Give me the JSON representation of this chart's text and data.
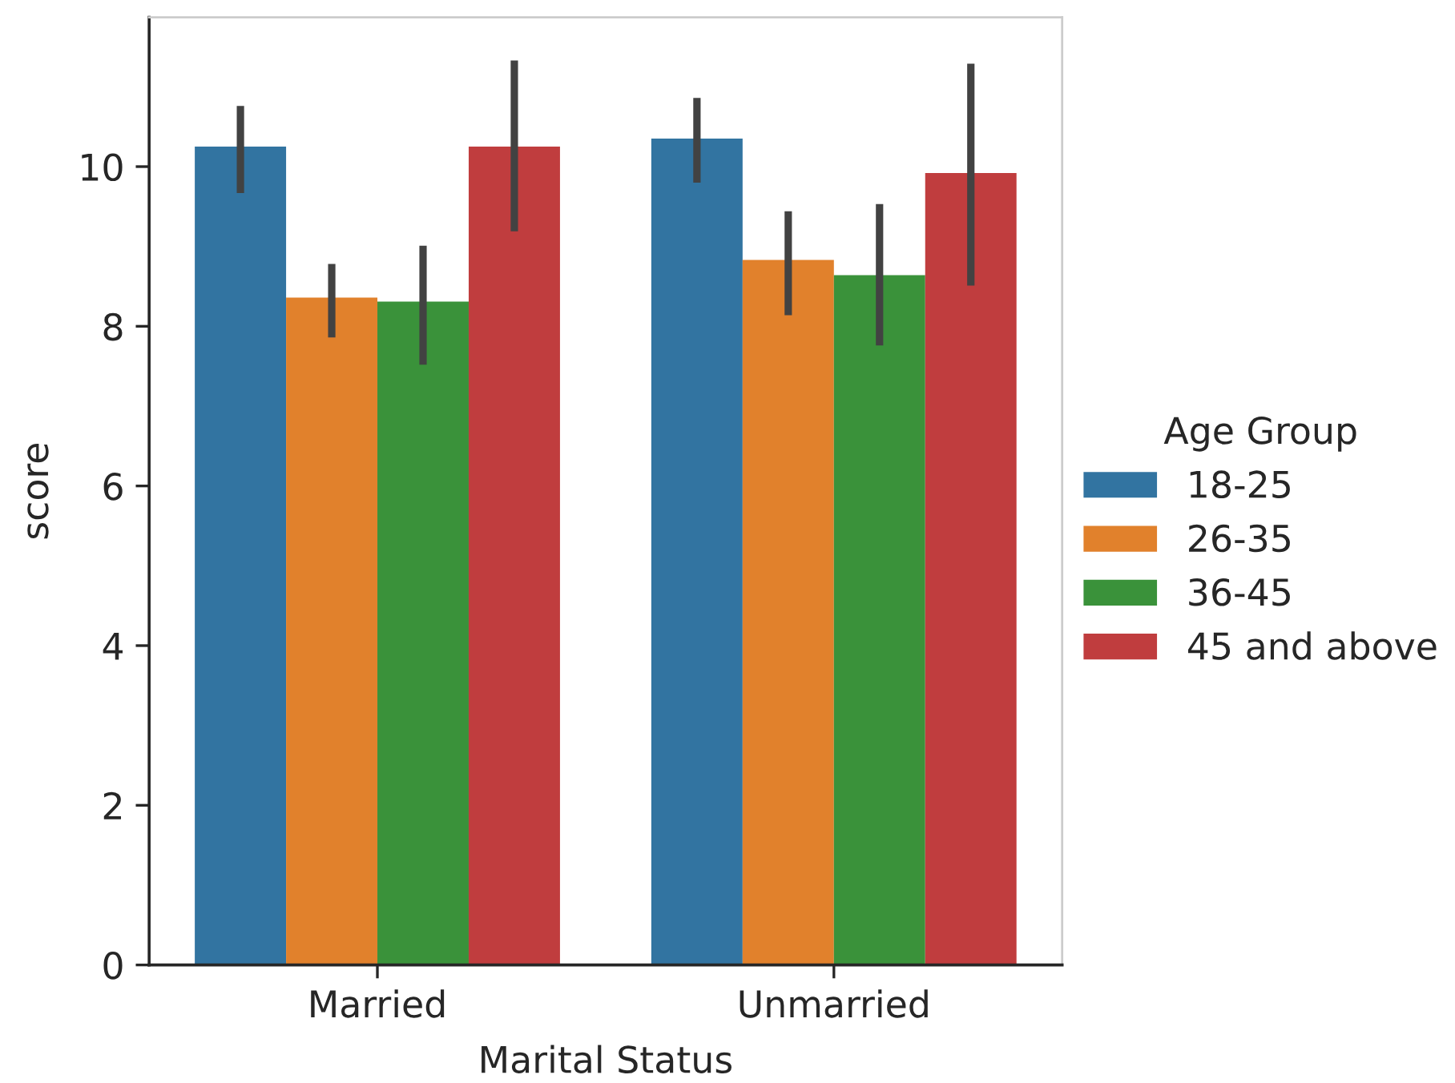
{
  "chart_data": {
    "type": "bar",
    "xlabel": "Marital Status",
    "ylabel": "score",
    "legend_title": "Age Group",
    "legend": "right",
    "categories": [
      "Married",
      "Unmarried"
    ],
    "series": [
      {
        "name": "18-25",
        "color": "#3274a1",
        "values": [
          10.25,
          10.35
        ],
        "errors": [
          [
            9.67,
            10.76
          ],
          [
            9.8,
            10.86
          ]
        ]
      },
      {
        "name": "26-35",
        "color": "#e1812c",
        "values": [
          8.36,
          8.83
        ],
        "errors": [
          [
            7.86,
            8.78
          ],
          [
            8.14,
            9.44
          ]
        ]
      },
      {
        "name": "36-45",
        "color": "#3a923a",
        "values": [
          8.31,
          8.64
        ],
        "errors": [
          [
            7.52,
            9.01
          ],
          [
            7.76,
            9.53
          ]
        ]
      },
      {
        "name": "45 and above",
        "color": "#c03d3e",
        "values": [
          10.25,
          9.92
        ],
        "errors": [
          [
            9.19,
            11.33
          ],
          [
            8.51,
            11.29
          ]
        ]
      }
    ],
    "ylim": [
      0,
      11.87
    ],
    "yticks": [
      0,
      2,
      4,
      6,
      8,
      10
    ],
    "grid": false
  }
}
